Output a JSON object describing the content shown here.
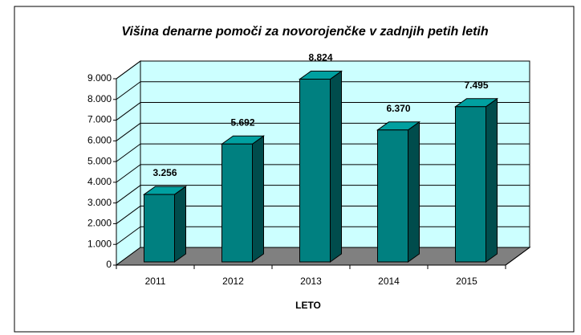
{
  "chart_data": {
    "type": "bar3d",
    "title": "Višina denarne pomoči za novorojenčke v zadnjih petih letih",
    "x_label": "LETO",
    "categories": [
      "2011",
      "2012",
      "2013",
      "2014",
      "2015"
    ],
    "values": [
      3256,
      5692,
      8824,
      6370,
      7495
    ],
    "value_labels": [
      "3.256",
      "5.692",
      "8.824",
      "6.370",
      "7.495"
    ],
    "color": "#008080",
    "ylim": [
      0,
      9000
    ],
    "yticks": [
      0,
      {
        "value": 1000,
        "label": "1.000"
      },
      {
        "value": 2000,
        "label": "2.000"
      },
      {
        "value": 3000,
        "label": "3.000"
      },
      {
        "value": 4000,
        "label": "4.000"
      },
      {
        "value": 5000,
        "label": "5.000"
      },
      {
        "value": 6000,
        "label": "6.000"
      },
      {
        "value": 7000,
        "label": "7.000"
      },
      {
        "value": 8000,
        "label": "8.000"
      },
      {
        "value": 9000,
        "label": "9.000"
      }
    ],
    "grid": true
  }
}
